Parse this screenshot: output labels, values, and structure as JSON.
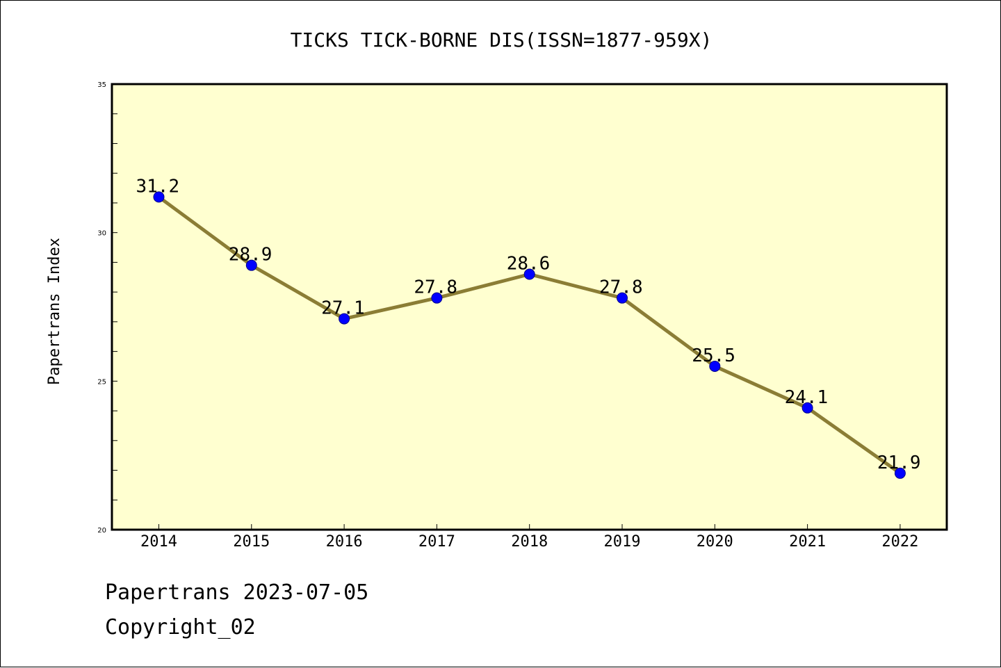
{
  "chart_data": {
    "type": "line",
    "title": "TICKS TICK-BORNE DIS(ISSN=1877-959X)",
    "xlabel": "",
    "ylabel": "Papertrans Index",
    "categories": [
      "2014",
      "2015",
      "2016",
      "2017",
      "2018",
      "2019",
      "2020",
      "2021",
      "2022"
    ],
    "values": [
      31.2,
      28.9,
      27.1,
      27.8,
      28.6,
      27.8,
      25.5,
      24.1,
      21.9
    ],
    "data_labels": [
      "31.2",
      "28.9",
      "27.1",
      "27.8",
      "28.6",
      "27.8",
      "25.5",
      "24.1",
      "21.9"
    ],
    "ylim": [
      20,
      35
    ],
    "yticks": [
      20,
      25,
      30,
      35
    ],
    "ytick_labels": [
      "20",
      "25",
      "30",
      "35"
    ],
    "grid": false,
    "legend": "none",
    "colors": {
      "plot_background": "#ffffd0",
      "line": "#8b7d35",
      "marker": "#0000ff"
    }
  },
  "footer": {
    "line1": "Papertrans 2023-07-05",
    "line2": "Copyright_02"
  }
}
